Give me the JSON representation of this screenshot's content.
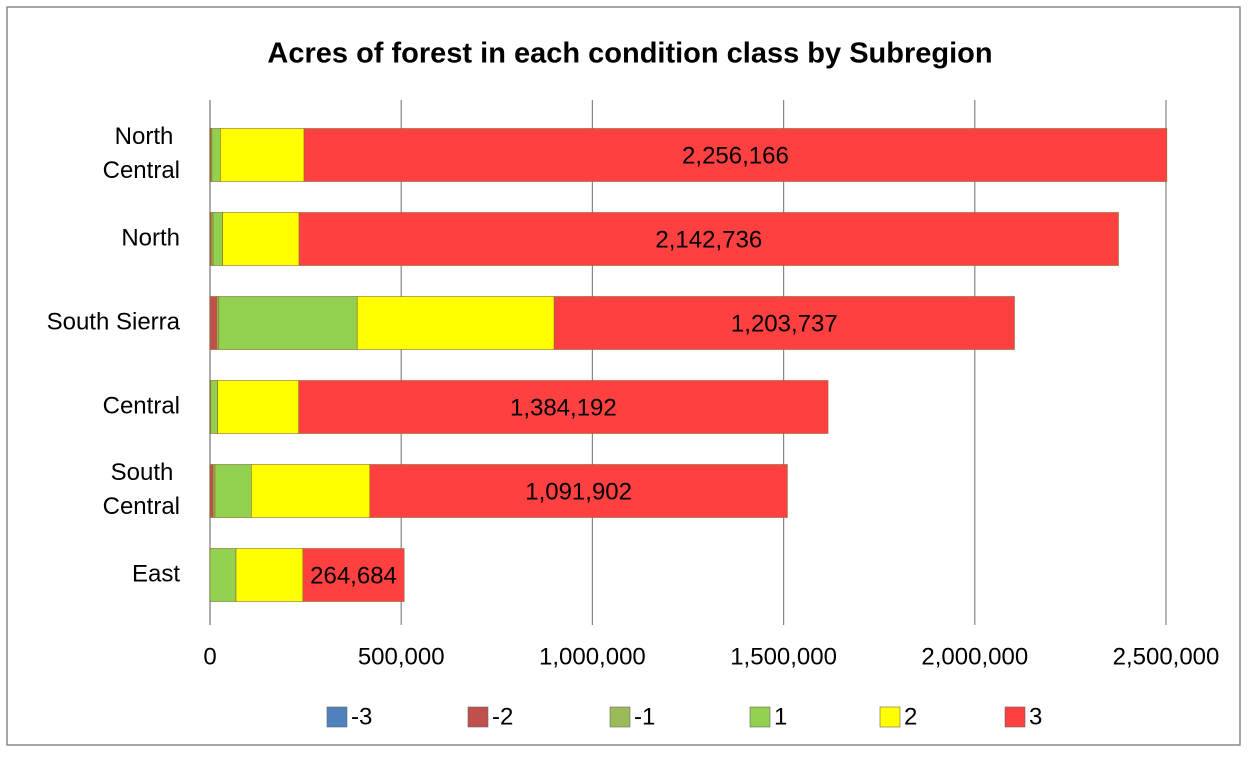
{
  "chart_data": {
    "type": "stacked-bar",
    "orientation": "horizontal",
    "title": "Acres of forest in each condition class by Subregion",
    "categories": [
      "North Central",
      "North",
      "South Sierra",
      "Central",
      "South Central",
      "East"
    ],
    "series": [
      {
        "name": "-3",
        "color": "#4f81bd",
        "values": [
          0,
          0,
          0,
          0,
          0,
          0
        ]
      },
      {
        "name": "-2",
        "color": "#c0504d",
        "values": [
          2000,
          3000,
          18000,
          0,
          8000,
          0
        ]
      },
      {
        "name": "-1",
        "color": "#9bbb59",
        "values": [
          3000,
          5000,
          5000,
          2000,
          5000,
          0
        ]
      },
      {
        "name": "1",
        "color": "#92d050",
        "values": [
          22000,
          25000,
          362000,
          18000,
          95000,
          68000
        ]
      },
      {
        "name": "2",
        "color": "#ffff00",
        "values": [
          219000,
          200000,
          515000,
          212000,
          310000,
          175000
        ]
      },
      {
        "name": "3",
        "color": "#ff4040",
        "values": [
          2256166,
          2142736,
          1203737,
          1384192,
          1091902,
          264684
        ],
        "value_labels": [
          "2,256,166",
          "2,142,736",
          "1,203,737",
          "1,384,192",
          "1,091,902",
          "264,684"
        ]
      }
    ],
    "xlim": [
      0,
      2500000
    ],
    "xticks": [
      0,
      {
        "value": 500000,
        "label": "500,000"
      },
      {
        "value": 1000000,
        "label": "1,000,000"
      },
      {
        "value": 1500000,
        "label": "1,500,000"
      },
      {
        "value": 2000000,
        "label": "2,000,000"
      },
      {
        "value": 2500000,
        "label": "2,500,000"
      }
    ],
    "grid": true,
    "legend": "bottom"
  }
}
